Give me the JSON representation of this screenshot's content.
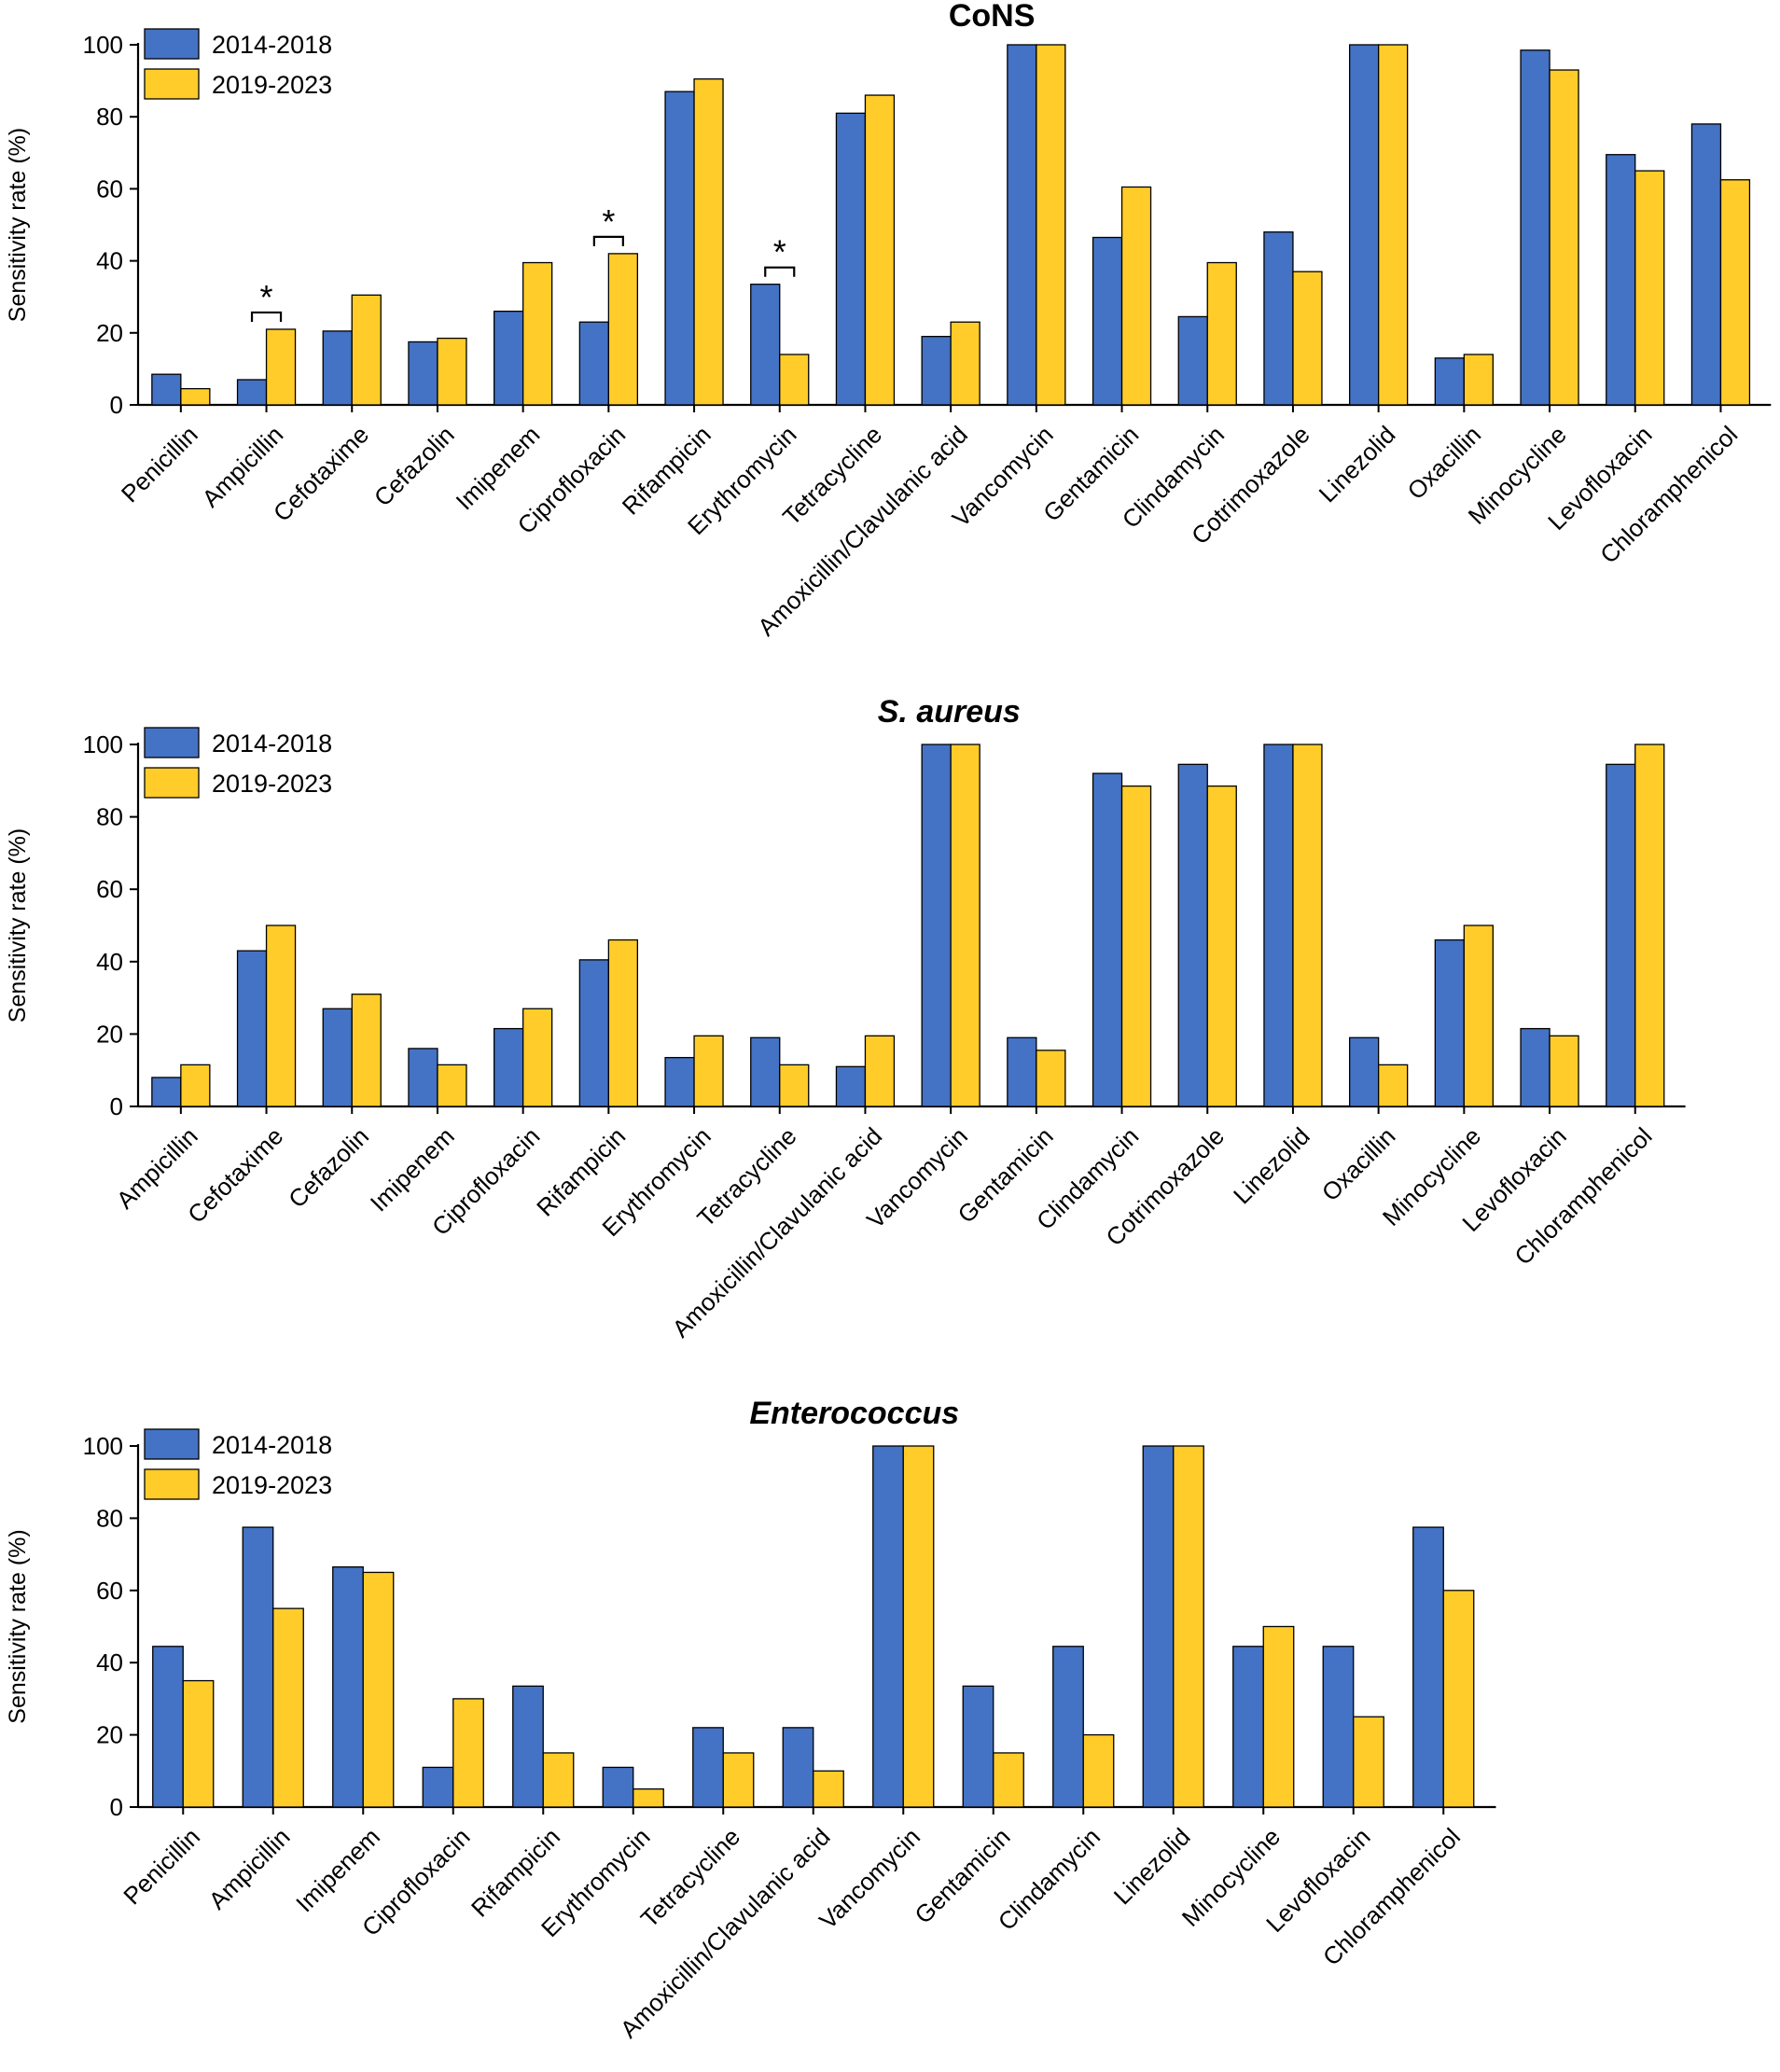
{
  "colors": {
    "series1": "#4472C4",
    "series2": "#FFCC29",
    "axis": "#000000"
  },
  "chart_data": [
    {
      "type": "bar",
      "title": "CoNS",
      "title_italic": false,
      "ylabel": "Sensitivity rate (%)",
      "xlabel": "",
      "ylim": [
        0,
        100
      ],
      "yticks": [
        0,
        20,
        40,
        60,
        80,
        100
      ],
      "legend": "top-left",
      "categories": [
        "Penicillin",
        "Ampicillin",
        "Cefotaxime",
        "Cefazolin",
        "Imipenem",
        "Ciprofloxacin",
        "Rifampicin",
        "Erythromycin",
        "Tetracycline",
        "Amoxicillin/Clavulanic acid",
        "Vancomycin",
        "Gentamicin",
        "Clindamycin",
        "Cotrimoxazole",
        "Linezolid",
        "Oxacillin",
        "Minocycline",
        "Levofloxacin",
        "Chloramphenicol"
      ],
      "series": [
        {
          "name": "2014-2018",
          "values": [
            8.5,
            7,
            20.5,
            17.5,
            26,
            23,
            87,
            33.5,
            81,
            19,
            100,
            46.5,
            24.5,
            48,
            100,
            13,
            98.5,
            69.5,
            78
          ]
        },
        {
          "name": "2019-2023",
          "values": [
            4.5,
            21,
            30.5,
            18.5,
            39.5,
            42,
            90.5,
            14,
            86,
            23,
            100,
            60.5,
            39.5,
            37,
            100,
            14,
            93,
            65,
            62.5
          ]
        }
      ],
      "significance": [
        {
          "index": 1,
          "label": "*"
        },
        {
          "index": 5,
          "label": "*"
        },
        {
          "index": 7,
          "label": "*"
        }
      ]
    },
    {
      "type": "bar",
      "title": "S. aureus",
      "title_italic": true,
      "ylabel": "Sensitivity rate (%)",
      "xlabel": "",
      "ylim": [
        0,
        100
      ],
      "yticks": [
        0,
        20,
        40,
        60,
        80,
        100
      ],
      "legend": "top-left",
      "categories": [
        "Ampicillin",
        "Cefotaxime",
        "Cefazolin",
        "Imipenem",
        "Ciprofloxacin",
        "Rifampicin",
        "Erythromycin",
        "Tetracycline",
        "Amoxicillin/Clavulanic acid",
        "Vancomycin",
        "Gentamicin",
        "Clindamycin",
        "Cotrimoxazole",
        "Linezolid",
        "Oxacillin",
        "Minocycline",
        "Levofloxacin",
        "Chloramphenicol"
      ],
      "series": [
        {
          "name": "2014-2018",
          "values": [
            8,
            43,
            27,
            16,
            21.5,
            40.5,
            13.5,
            19,
            11,
            100,
            19,
            92,
            94.5,
            100,
            19,
            46,
            21.5,
            94.5
          ]
        },
        {
          "name": "2019-2023",
          "values": [
            11.5,
            50,
            31,
            11.5,
            27,
            46,
            19.5,
            11.5,
            19.5,
            100,
            15.5,
            88.5,
            88.5,
            100,
            11.5,
            50,
            19.5,
            100
          ]
        }
      ],
      "significance": []
    },
    {
      "type": "bar",
      "title": "Enterococcus",
      "title_italic": true,
      "ylabel": "Sensitivity rate (%)",
      "xlabel": "",
      "ylim": [
        0,
        100
      ],
      "yticks": [
        0,
        20,
        40,
        60,
        80,
        100
      ],
      "legend": "top-left",
      "categories": [
        "Penicillin",
        "Ampicillin",
        "Imipenem",
        "Ciprofloxacin",
        "Rifampicin",
        "Erythromycin",
        "Tetracycline",
        "Amoxicillin/Clavulanic acid",
        "Vancomycin",
        "Gentamicin",
        "Clindamycin",
        "Linezolid",
        "Minocycline",
        "Levofloxacin",
        "Chloramphenicol"
      ],
      "series": [
        {
          "name": "2014-2018",
          "values": [
            44.5,
            77.5,
            66.5,
            11,
            33.5,
            11,
            22,
            22,
            100,
            33.5,
            44.5,
            100,
            44.5,
            44.5,
            77.5
          ]
        },
        {
          "name": "2019-2023",
          "values": [
            35,
            55,
            65,
            30,
            15,
            5,
            15,
            10,
            100,
            15,
            20,
            100,
            50,
            25,
            60
          ]
        }
      ],
      "significance": []
    }
  ]
}
